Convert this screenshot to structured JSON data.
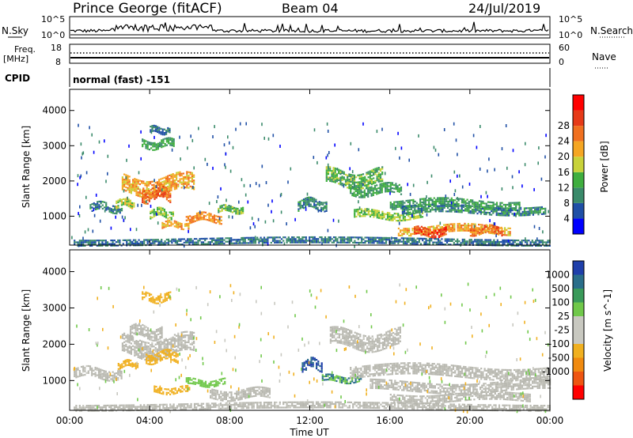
{
  "header": {
    "site": "Prince George (fitACF)",
    "beam": "Beam 04",
    "date": "24/Jul/2019"
  },
  "status_panels": {
    "nsky": {
      "label": "N.Sky",
      "right_label": "N.Search",
      "left_ticks": [
        "10^5",
        "10^0"
      ],
      "right_ticks": [
        "10^5",
        "10^0"
      ]
    },
    "freq": {
      "label_line1": "Freq.",
      "label_line2": "[MHz]",
      "left_ticks": [
        "18",
        "8"
      ],
      "right_ticks": [
        "60",
        "0"
      ],
      "right_label": "Nave"
    },
    "cpid": {
      "label": "CPID",
      "value": "normal (fast) -151"
    }
  },
  "colors": {
    "frame": "#000000",
    "power_scale": [
      "#0000ff",
      "#1f4fa6",
      "#3a8a6a",
      "#3fae3f",
      "#c8d23a",
      "#f5a623",
      "#f07020",
      "#e63a18",
      "#ff0000"
    ],
    "velocity_scale": [
      "#1f3faa",
      "#2a6e8a",
      "#3a9a5a",
      "#70c84a",
      "#c8c8c0",
      "#c8c8c0",
      "#f0b020",
      "#f08a10",
      "#ee5511",
      "#ff0000"
    ],
    "ground_scatter": "#b8b8b0"
  },
  "chart_data": [
    {
      "type": "heatmap",
      "panel": "power",
      "xlabel": "Time UT",
      "ylabel": "Slant Range [km]",
      "xlim": [
        0,
        24
      ],
      "ylim": [
        180,
        4600
      ],
      "x_ticks": [
        "00:00",
        "04:00",
        "08:00",
        "12:00",
        "16:00",
        "20:00",
        "00:00"
      ],
      "y_ticks": [
        "1000",
        "2000",
        "3000",
        "4000"
      ],
      "colorbar_label": "Power [dB]",
      "colorbar_ticks": [
        "4",
        "8",
        "12",
        "16",
        "20",
        "24",
        "28"
      ],
      "colorbar_range": [
        0,
        32
      ],
      "features": [
        {
          "t0": 1.0,
          "t1": 2.6,
          "r": 1250,
          "w": 120,
          "v": 9
        },
        {
          "t0": 2.3,
          "t1": 3.2,
          "r": 1400,
          "w": 100,
          "v": 18
        },
        {
          "t0": 2.6,
          "t1": 6.2,
          "r": 1900,
          "w": 240,
          "v": 22
        },
        {
          "t0": 3.6,
          "t1": 5.0,
          "r": 1650,
          "w": 180,
          "v": 26
        },
        {
          "t0": 4.0,
          "t1": 5.2,
          "r": 1080,
          "w": 120,
          "v": 16
        },
        {
          "t0": 4.6,
          "t1": 6.0,
          "r": 760,
          "w": 90,
          "v": 22
        },
        {
          "t0": 5.8,
          "t1": 7.6,
          "r": 960,
          "w": 110,
          "v": 24
        },
        {
          "t0": 7.4,
          "t1": 8.7,
          "r": 1200,
          "w": 90,
          "v": 14
        },
        {
          "t0": 3.6,
          "t1": 5.2,
          "r": 3050,
          "w": 120,
          "v": 12
        },
        {
          "t0": 4.0,
          "t1": 5.0,
          "r": 3450,
          "w": 90,
          "v": 8
        },
        {
          "t0": 11.4,
          "t1": 12.8,
          "r": 1350,
          "w": 130,
          "v": 10
        },
        {
          "t0": 12.8,
          "t1": 15.6,
          "r": 2100,
          "w": 200,
          "v": 14
        },
        {
          "t0": 14.0,
          "t1": 16.6,
          "r": 1750,
          "w": 140,
          "v": 12
        },
        {
          "t0": 16.0,
          "t1": 22.5,
          "r": 1350,
          "w": 120,
          "v": 12
        },
        {
          "t0": 14.2,
          "t1": 17.6,
          "r": 1050,
          "w": 110,
          "v": 16
        },
        {
          "t0": 16.6,
          "t1": 23.8,
          "r": 1200,
          "w": 100,
          "v": 10
        },
        {
          "t0": 16.4,
          "t1": 22.0,
          "r": 620,
          "w": 120,
          "v": 22
        },
        {
          "t0": 17.2,
          "t1": 18.8,
          "r": 560,
          "w": 110,
          "v": 30
        },
        {
          "t0": 20.0,
          "t1": 21.6,
          "r": 620,
          "w": 100,
          "v": 26
        },
        {
          "t0": 0.2,
          "t1": 24.0,
          "r": 300,
          "w": 80,
          "v": 8
        }
      ]
    },
    {
      "type": "heatmap",
      "panel": "velocity",
      "xlabel": "Time UT",
      "ylabel": "Slant Range [km]",
      "xlim": [
        0,
        24
      ],
      "ylim": [
        180,
        4600
      ],
      "x_ticks": [
        "00:00",
        "04:00",
        "08:00",
        "12:00",
        "16:00",
        "20:00",
        "00:00"
      ],
      "y_ticks": [
        "1000",
        "2000",
        "3000",
        "4000"
      ],
      "colorbar_label": "Velocity [m s^-1]",
      "colorbar_ticks": [
        "1000",
        "500",
        "100",
        "25",
        "-25",
        "-100",
        "-500",
        "-1000"
      ],
      "features": [
        {
          "t0": 0.2,
          "t1": 2.6,
          "r": 1200,
          "w": 140,
          "v": 0
        },
        {
          "t0": 2.4,
          "t1": 3.4,
          "r": 1450,
          "w": 90,
          "v": -80
        },
        {
          "t0": 2.6,
          "t1": 6.2,
          "r": 1950,
          "w": 260,
          "v": 0
        },
        {
          "t0": 3.0,
          "t1": 4.6,
          "r": 2350,
          "w": 150,
          "v": 0
        },
        {
          "t0": 3.8,
          "t1": 5.4,
          "r": 1650,
          "w": 140,
          "v": -60
        },
        {
          "t0": 4.2,
          "t1": 6.0,
          "r": 750,
          "w": 80,
          "v": -70
        },
        {
          "t0": 5.8,
          "t1": 7.8,
          "r": 950,
          "w": 90,
          "v": 80
        },
        {
          "t0": 7.0,
          "t1": 10.0,
          "r": 650,
          "w": 120,
          "v": 0
        },
        {
          "t0": 3.6,
          "t1": 5.0,
          "r": 3300,
          "w": 100,
          "v": -70
        },
        {
          "t0": 11.6,
          "t1": 12.6,
          "r": 1450,
          "w": 130,
          "v": 500
        },
        {
          "t0": 12.6,
          "t1": 14.6,
          "r": 1050,
          "w": 90,
          "v": 100
        },
        {
          "t0": 13.0,
          "t1": 16.5,
          "r": 2150,
          "w": 220,
          "v": 0
        },
        {
          "t0": 14.0,
          "t1": 24.0,
          "r": 1250,
          "w": 160,
          "v": 0
        },
        {
          "t0": 15.0,
          "t1": 24.0,
          "r": 850,
          "w": 130,
          "v": 0
        },
        {
          "t0": 16.0,
          "t1": 23.0,
          "r": 550,
          "w": 100,
          "v": 0
        },
        {
          "t0": 0.2,
          "t1": 24.0,
          "r": 300,
          "w": 80,
          "v": 0
        }
      ]
    }
  ]
}
